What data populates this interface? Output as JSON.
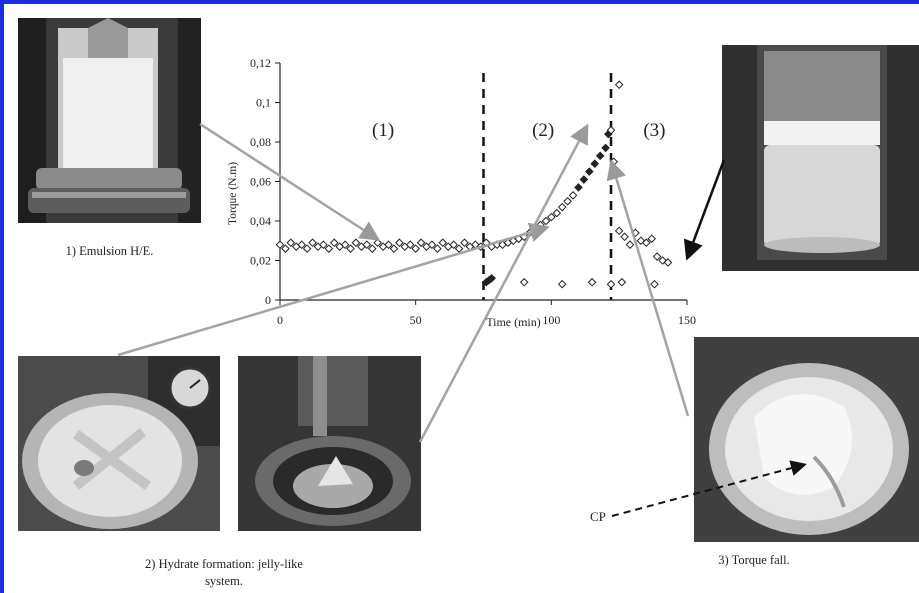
{
  "captions": {
    "emulsion": "1) Emulsion H/E.",
    "hydrate_line1": "2) Hydrate formation: jelly-like",
    "hydrate_line2": "system.",
    "torque_fall": "3) Torque fall.",
    "cp": "CP"
  },
  "chart_data": {
    "type": "scatter",
    "xlabel": "Time (min)",
    "ylabel": "Torque (N.m)",
    "xlim": [
      0,
      150
    ],
    "ylim": [
      0,
      0.12
    ],
    "x_ticks": [
      "0",
      "50",
      "100",
      "150"
    ],
    "y_ticks": [
      "0",
      "0,02",
      "0,04",
      "0,06",
      "0,08",
      "0,1",
      "0,12"
    ],
    "region_labels": [
      "(1)",
      "(2)",
      "(3)"
    ],
    "region_boundaries_min": [
      75,
      122
    ],
    "grid": false,
    "series_main": [
      [
        0,
        0.028
      ],
      [
        2,
        0.026
      ],
      [
        4,
        0.029
      ],
      [
        6,
        0.027
      ],
      [
        8,
        0.028
      ],
      [
        10,
        0.026
      ],
      [
        12,
        0.029
      ],
      [
        14,
        0.027
      ],
      [
        16,
        0.028
      ],
      [
        18,
        0.026
      ],
      [
        20,
        0.029
      ],
      [
        22,
        0.027
      ],
      [
        24,
        0.028
      ],
      [
        26,
        0.026
      ],
      [
        28,
        0.029
      ],
      [
        30,
        0.027
      ],
      [
        32,
        0.028
      ],
      [
        34,
        0.026
      ],
      [
        36,
        0.029
      ],
      [
        38,
        0.027
      ],
      [
        40,
        0.028
      ],
      [
        42,
        0.026
      ],
      [
        44,
        0.029
      ],
      [
        46,
        0.027
      ],
      [
        48,
        0.028
      ],
      [
        50,
        0.026
      ],
      [
        52,
        0.029
      ],
      [
        54,
        0.027
      ],
      [
        56,
        0.028
      ],
      [
        58,
        0.026
      ],
      [
        60,
        0.029
      ],
      [
        62,
        0.027
      ],
      [
        64,
        0.028
      ],
      [
        66,
        0.026
      ],
      [
        68,
        0.029
      ],
      [
        70,
        0.027
      ],
      [
        72,
        0.028
      ],
      [
        74,
        0.027
      ],
      [
        76,
        0.029
      ],
      [
        78,
        0.027
      ],
      [
        80,
        0.028
      ],
      [
        82,
        0.028
      ],
      [
        84,
        0.029
      ],
      [
        86,
        0.03
      ],
      [
        88,
        0.031
      ],
      [
        90,
        0.032
      ],
      [
        92,
        0.034
      ],
      [
        94,
        0.036
      ],
      [
        96,
        0.038
      ],
      [
        98,
        0.04
      ],
      [
        100,
        0.042
      ],
      [
        102,
        0.044
      ],
      [
        104,
        0.047
      ],
      [
        106,
        0.05
      ],
      [
        108,
        0.053
      ],
      [
        110,
        0.057
      ],
      [
        112,
        0.061
      ],
      [
        114,
        0.065
      ],
      [
        116,
        0.069
      ],
      [
        118,
        0.073
      ],
      [
        120,
        0.077
      ],
      [
        121,
        0.084
      ],
      [
        123,
        0.07
      ],
      [
        125,
        0.035
      ],
      [
        127,
        0.032
      ],
      [
        129,
        0.028
      ],
      [
        131,
        0.034
      ],
      [
        133,
        0.03
      ],
      [
        135,
        0.029
      ],
      [
        137,
        0.031
      ],
      [
        139,
        0.022
      ],
      [
        141,
        0.02
      ],
      [
        143,
        0.019
      ]
    ],
    "series_low": [
      [
        76,
        0.009
      ],
      [
        77,
        0.01
      ],
      [
        78,
        0.011
      ],
      [
        90,
        0.009
      ],
      [
        104,
        0.008
      ],
      [
        115,
        0.009
      ],
      [
        122,
        0.008
      ],
      [
        126,
        0.009
      ],
      [
        138,
        0.008
      ]
    ],
    "series_outlier": [
      [
        125,
        0.109
      ],
      [
        122,
        0.086
      ]
    ]
  }
}
